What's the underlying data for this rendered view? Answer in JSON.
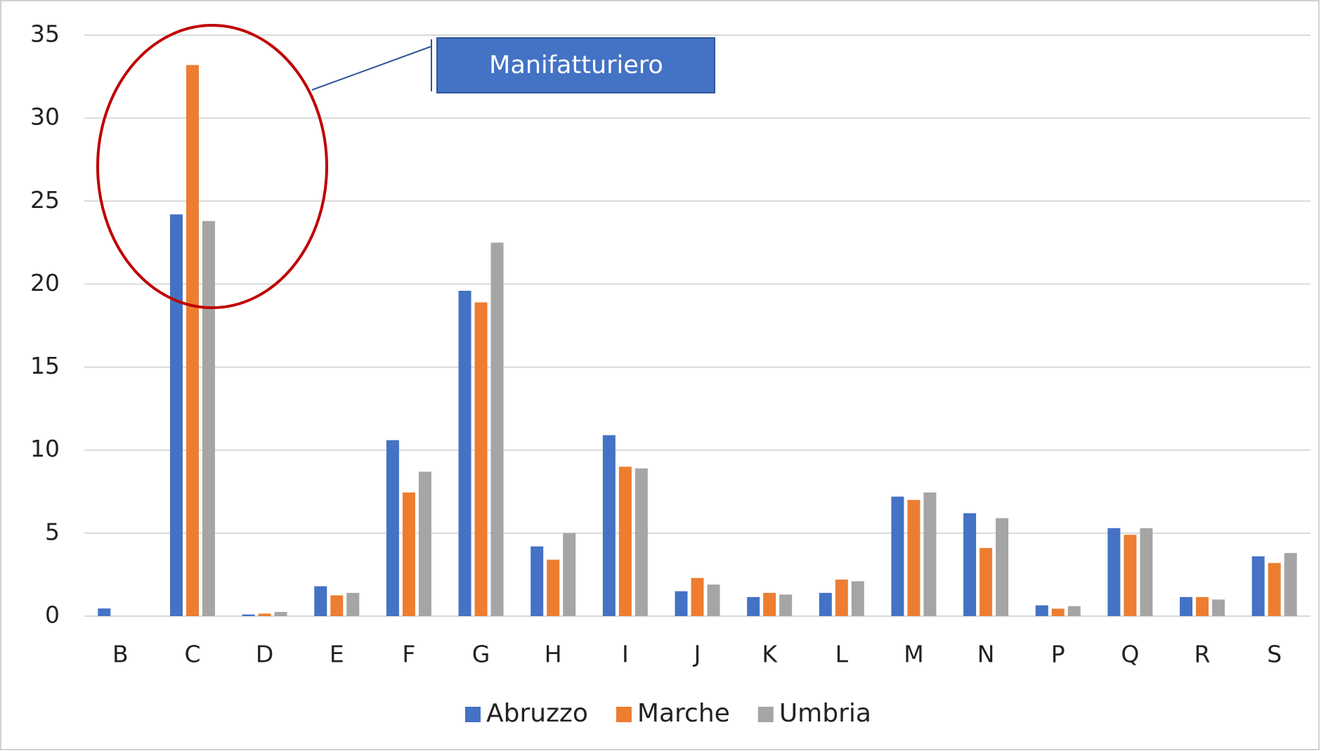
{
  "chart_data": {
    "type": "bar",
    "annotation": "Manifatturiero",
    "categories": [
      "B",
      "C",
      "D",
      "E",
      "F",
      "G",
      "H",
      "I",
      "J",
      "K",
      "L",
      "M",
      "N",
      "P",
      "Q",
      "R",
      "S"
    ],
    "series": [
      {
        "name": "Abruzzo",
        "color": "#4472c4",
        "values": [
          0.46,
          24.2,
          0.1,
          1.8,
          10.6,
          19.6,
          4.2,
          10.9,
          1.5,
          1.15,
          1.4,
          7.2,
          6.2,
          0.65,
          5.3,
          1.15,
          3.6
        ]
      },
      {
        "name": "Marche",
        "color": "#ed7d31",
        "values": [
          0,
          33.2,
          0.15,
          1.25,
          7.45,
          18.9,
          3.4,
          9.0,
          2.3,
          1.4,
          2.2,
          7.0,
          4.1,
          0.45,
          4.9,
          1.15,
          3.2
        ]
      },
      {
        "name": "Umbria",
        "color": "#a5a5a5",
        "values": [
          0,
          23.8,
          0.25,
          1.4,
          8.7,
          22.5,
          5.0,
          8.9,
          1.9,
          1.3,
          2.1,
          7.45,
          5.9,
          0.6,
          5.3,
          1.0,
          3.8
        ]
      }
    ],
    "ylim": [
      0,
      35
    ],
    "yticks": [
      0,
      5,
      10,
      15,
      20,
      25,
      30,
      35
    ],
    "grid": true,
    "legend": "bottom"
  }
}
